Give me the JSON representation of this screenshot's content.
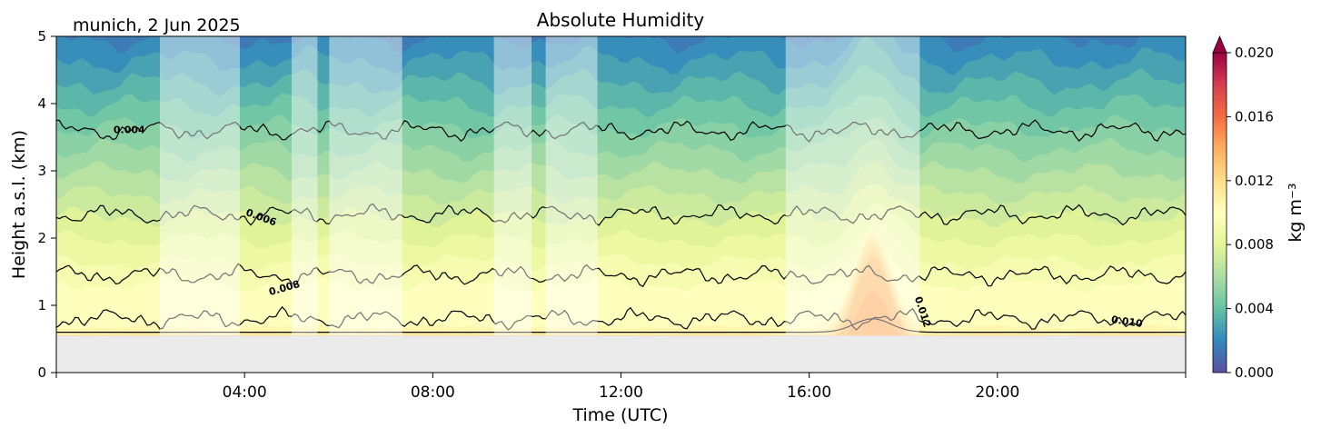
{
  "chart_data": {
    "type": "heatmap",
    "title": "Absolute Humidity",
    "subtitle": "munich, 2 Jun 2025",
    "xlabel": "Time (UTC)",
    "ylabel": "Height a.s.l. (km)",
    "xlim": [
      0,
      24
    ],
    "ylim": [
      0,
      5
    ],
    "x_ticks": [
      {
        "value": 4,
        "label": "04:00"
      },
      {
        "value": 8,
        "label": "08:00"
      },
      {
        "value": 12,
        "label": "12:00"
      },
      {
        "value": 16,
        "label": "16:00"
      },
      {
        "value": 20,
        "label": "20:00"
      }
    ],
    "y_ticks": [
      {
        "value": 0,
        "label": "0"
      },
      {
        "value": 1,
        "label": "1"
      },
      {
        "value": 2,
        "label": "2"
      },
      {
        "value": 3,
        "label": "3"
      },
      {
        "value": 4,
        "label": "4"
      },
      {
        "value": 5,
        "label": "5"
      }
    ],
    "ground_level_km": 0.55,
    "colorbar": {
      "label": "kg m⁻³",
      "min": 0.0,
      "max": 0.02,
      "extend": "max",
      "ticks": [
        {
          "value": 0.0,
          "label": "0.000"
        },
        {
          "value": 0.004,
          "label": "0.004"
        },
        {
          "value": 0.008,
          "label": "0.008"
        },
        {
          "value": 0.012,
          "label": "0.012"
        },
        {
          "value": 0.016,
          "label": "0.016"
        },
        {
          "value": 0.02,
          "label": "0.020"
        }
      ],
      "colormap": [
        "#5e4fa2",
        "#3288bd",
        "#66c2a5",
        "#abdda4",
        "#e6f598",
        "#ffffbf",
        "#fee08b",
        "#fdae61",
        "#f46d43",
        "#d53e4f",
        "#9e0142"
      ]
    },
    "masked_periods_utc": [
      [
        2.2,
        3.9
      ],
      [
        5.0,
        5.55
      ],
      [
        5.8,
        7.35
      ],
      [
        9.3,
        10.1
      ],
      [
        10.4,
        11.5
      ],
      [
        15.5,
        18.35
      ]
    ],
    "contours": [
      {
        "level": 0.004,
        "label": "0.004",
        "base_height_km": 3.6
      },
      {
        "level": 0.006,
        "label": "0.006",
        "base_height_km": 2.35
      },
      {
        "level": 0.008,
        "label": "0.008",
        "base_height_km": 1.45
      },
      {
        "level": 0.01,
        "label": "0.010",
        "base_height_km": 0.8
      },
      {
        "level": 0.012,
        "label": "0.012",
        "base_height_km": 0.6
      }
    ],
    "grid": false,
    "legend": "colorbar-right"
  }
}
